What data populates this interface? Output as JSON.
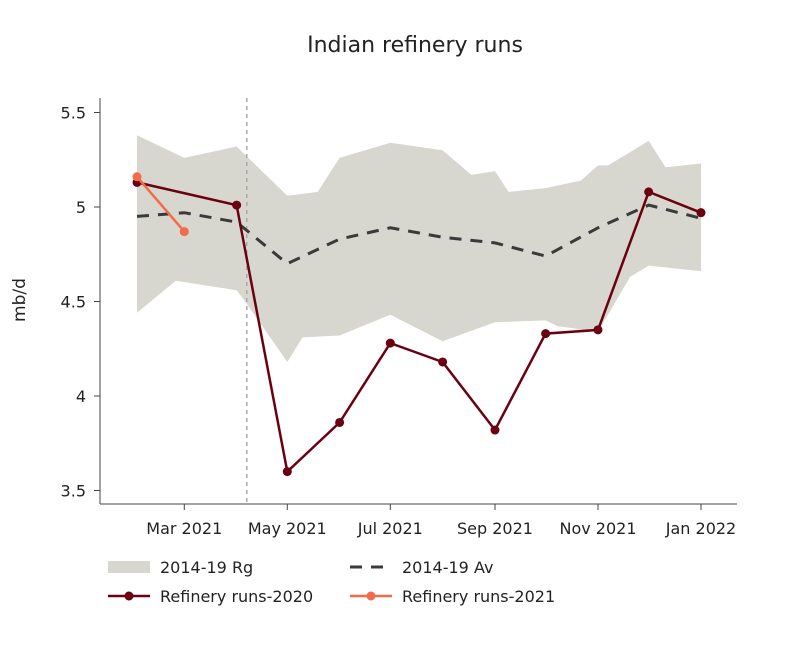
{
  "chart_data": {
    "type": "line",
    "title": "Indian refinery runs",
    "xlabel": "",
    "ylabel": "mb/d",
    "ylim": [
      3.45,
      5.58
    ],
    "xlim": [
      "2021-01-20",
      "2022-01-20"
    ],
    "yticks": [
      3.5,
      4,
      4.5,
      5,
      5.5
    ],
    "ytick_labels": [
      "3.5",
      "4",
      "4.5",
      "5",
      "5.5"
    ],
    "xticks": [
      "2021-03-01",
      "2021-05-01",
      "2021-07-01",
      "2021-09-01",
      "2021-11-01",
      "2022-01-01"
    ],
    "xtick_labels": [
      "Mar 2021",
      "May 2021",
      "Jul 2021",
      "Sep 2021",
      "Nov 2021",
      "Jan 2022"
    ],
    "grid": false,
    "legend_placement": "bottom",
    "vertical_marker": {
      "x": "2021-04-07",
      "color": "#aaaaaa",
      "style": "dashed"
    },
    "range_band": {
      "name": "2014-19 Rg",
      "color": "#d7d6cf",
      "upper": {
        "x": [
          "2021-02-01",
          "2021-03-01",
          "2021-04-01",
          "2021-05-01",
          "2021-05-19",
          "2021-06-01",
          "2021-07-01",
          "2021-08-01",
          "2021-08-18",
          "2021-09-01",
          "2021-09-09",
          "2021-10-01",
          "2021-10-22",
          "2021-11-01",
          "2021-11-07",
          "2021-12-01",
          "2021-12-11",
          "2022-01-01"
        ],
        "y": [
          5.38,
          5.26,
          5.32,
          5.06,
          5.08,
          5.26,
          5.34,
          5.3,
          5.17,
          5.19,
          5.08,
          5.1,
          5.14,
          5.22,
          5.22,
          5.35,
          5.21,
          5.23
        ]
      },
      "lower": {
        "x": [
          "2021-02-01",
          "2021-02-24",
          "2021-04-01",
          "2021-04-06",
          "2021-05-01",
          "2021-05-10",
          "2021-06-01",
          "2021-07-01",
          "2021-08-01",
          "2021-09-01",
          "2021-10-01",
          "2021-10-08",
          "2021-11-01",
          "2021-11-20",
          "2021-12-01",
          "2022-01-01"
        ],
        "y": [
          4.44,
          4.61,
          4.56,
          4.5,
          4.18,
          4.31,
          4.32,
          4.43,
          4.29,
          4.39,
          4.4,
          4.37,
          4.34,
          4.63,
          4.69,
          4.66
        ]
      }
    },
    "series": [
      {
        "name": "2014-19 Av",
        "color": "#3a3a3a",
        "style": "dashed",
        "x": [
          "2021-02-01",
          "2021-03-01",
          "2021-04-01",
          "2021-05-01",
          "2021-06-01",
          "2021-07-01",
          "2021-08-01",
          "2021-09-01",
          "2021-10-01",
          "2021-11-01",
          "2021-12-01",
          "2022-01-01"
        ],
        "y": [
          4.95,
          4.97,
          4.92,
          4.7,
          4.83,
          4.89,
          4.84,
          4.81,
          4.74,
          4.89,
          5.01,
          4.94
        ]
      },
      {
        "name": "Refinery runs-2020",
        "color": "#6b0010",
        "style": "solid-markers",
        "x": [
          "2021-02-01",
          "2021-04-01",
          "2021-05-01",
          "2021-06-01",
          "2021-07-01",
          "2021-08-01",
          "2021-09-01",
          "2021-10-01",
          "2021-11-01",
          "2021-12-01",
          "2022-01-01"
        ],
        "y": [
          5.13,
          5.01,
          3.6,
          3.86,
          4.28,
          4.18,
          3.82,
          4.33,
          4.35,
          5.08,
          4.97
        ]
      },
      {
        "name": "Refinery runs-2021",
        "color": "#f26b4a",
        "style": "solid-markers",
        "x": [
          "2021-02-01",
          "2021-03-01"
        ],
        "y": [
          5.16,
          4.87
        ]
      }
    ]
  }
}
